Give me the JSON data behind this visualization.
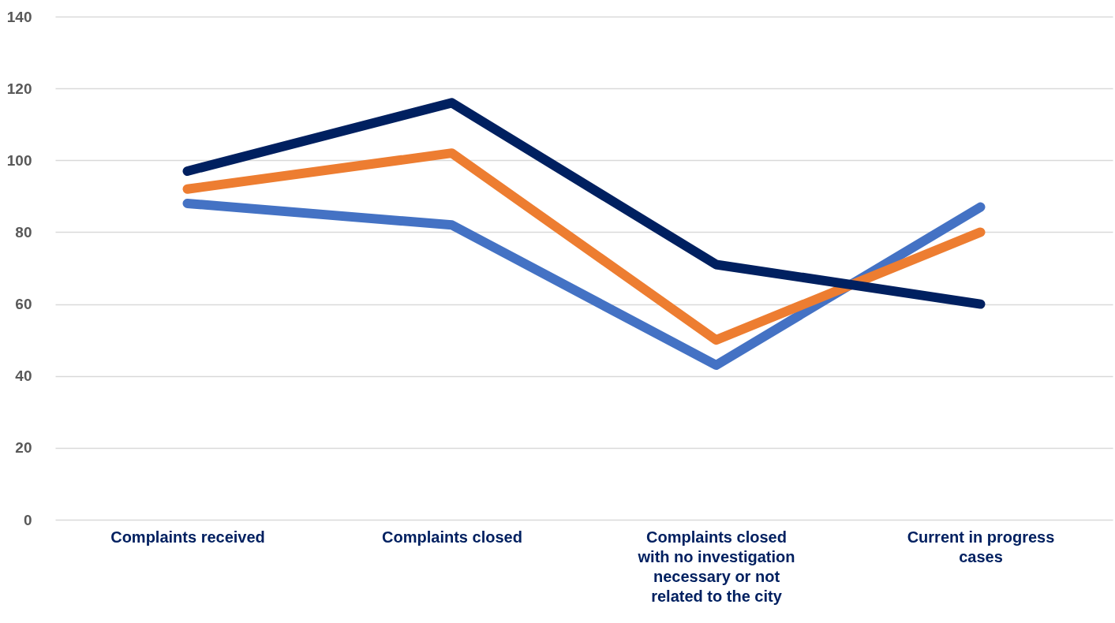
{
  "chart_data": {
    "type": "line",
    "categories": [
      "Complaints received",
      "Complaints closed",
      "Complaints closed with no investigation necessary or not related to the city",
      "Current in progress cases"
    ],
    "series": [
      {
        "color": "#4472c4",
        "values": [
          88,
          82,
          43,
          87
        ]
      },
      {
        "color": "#ed7d31",
        "values": [
          92,
          102,
          50,
          80
        ]
      },
      {
        "color": "#002060",
        "values": [
          97,
          116,
          71,
          60
        ]
      }
    ],
    "ylim": [
      0,
      140
    ],
    "yticks": [
      0,
      20,
      40,
      60,
      80,
      100,
      120,
      140
    ],
    "grid": "y",
    "legend": false,
    "marker": "none",
    "line_style": "solid"
  }
}
